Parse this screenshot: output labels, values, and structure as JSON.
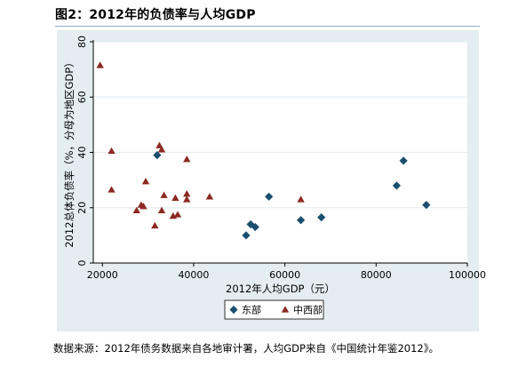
{
  "figure_title": "图2：2012年的负债率与人均GDP",
  "source_note": "数据来源：2012年债务数据来自各地审计署，人均GDP来自《中国统计年鉴2012》。",
  "colors": {
    "east": "#1a4e6e",
    "central_west": "#8b2a22",
    "panel_bg": "#e3edf2",
    "plot_bg": "#ffffff",
    "title_rule": "#8fb0c4"
  },
  "chart_data": {
    "type": "scatter",
    "xlabel": "2012年人均GDP（元）",
    "ylabel": "2012总体负债率（%，分母为地区GDP）",
    "xlim": [
      18000,
      100000
    ],
    "ylim": [
      0,
      80
    ],
    "xticks": [
      20000,
      40000,
      60000,
      80000,
      100000
    ],
    "yticks": [
      0,
      20,
      40,
      60,
      80
    ],
    "grid": "horizontal",
    "legend_position": "bottom",
    "series": [
      {
        "name": "东部",
        "marker": "diamond",
        "color": "#1a4e6e",
        "points": [
          [
            32000,
            39
          ],
          [
            51500,
            10
          ],
          [
            52500,
            14
          ],
          [
            53500,
            13
          ],
          [
            56500,
            24
          ],
          [
            63500,
            15.5
          ],
          [
            68000,
            16.5
          ],
          [
            84500,
            28
          ],
          [
            86000,
            37
          ],
          [
            91000,
            21
          ]
        ]
      },
      {
        "name": "中西部",
        "marker": "triangle",
        "color": "#8b2a22",
        "points": [
          [
            19500,
            71.5
          ],
          [
            22000,
            40.5
          ],
          [
            22000,
            26.5
          ],
          [
            27500,
            19
          ],
          [
            28500,
            21
          ],
          [
            29000,
            20.5
          ],
          [
            29500,
            29.5
          ],
          [
            31500,
            13.5
          ],
          [
            32500,
            42.5
          ],
          [
            33000,
            41
          ],
          [
            33000,
            19
          ],
          [
            33500,
            24.5
          ],
          [
            35500,
            17
          ],
          [
            36000,
            23.5
          ],
          [
            36500,
            17.5
          ],
          [
            38500,
            37.5
          ],
          [
            38500,
            25
          ],
          [
            38500,
            23
          ],
          [
            43500,
            24
          ],
          [
            63500,
            23
          ]
        ]
      }
    ]
  }
}
